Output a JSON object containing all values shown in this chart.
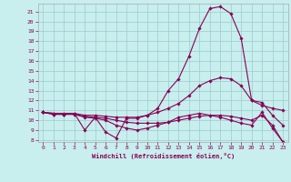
{
  "title": "",
  "xlabel": "Windchill (Refroidissement éolien,°C)",
  "bg_color": "#c8eeee",
  "line_color": "#880055",
  "grid_color": "#99cccc",
  "xlim": [
    -0.5,
    23.5
  ],
  "ylim": [
    7.8,
    21.8
  ],
  "yticks": [
    8,
    9,
    10,
    11,
    12,
    13,
    14,
    15,
    16,
    17,
    18,
    19,
    20,
    21
  ],
  "xticks": [
    0,
    1,
    2,
    3,
    4,
    5,
    6,
    7,
    8,
    9,
    10,
    11,
    12,
    13,
    14,
    15,
    16,
    17,
    18,
    19,
    20,
    21,
    22,
    23
  ],
  "series": [
    {
      "x": [
        0,
        1,
        2,
        3,
        4,
        5,
        6,
        7,
        8,
        9,
        10,
        11,
        12,
        13,
        14,
        15,
        16,
        17,
        18,
        19,
        20,
        21,
        22,
        23
      ],
      "y": [
        10.8,
        10.6,
        10.6,
        10.7,
        9.0,
        10.3,
        8.8,
        8.2,
        10.2,
        10.2,
        10.5,
        11.2,
        13.0,
        14.2,
        16.5,
        19.3,
        21.3,
        21.5,
        20.8,
        18.3,
        12.0,
        11.8,
        10.5,
        9.5
      ]
    },
    {
      "x": [
        0,
        1,
        2,
        3,
        4,
        5,
        6,
        7,
        8,
        9,
        10,
        11,
        12,
        13,
        14,
        15,
        16,
        17,
        18,
        19,
        20,
        21,
        22,
        23
      ],
      "y": [
        10.8,
        10.7,
        10.7,
        10.7,
        10.5,
        10.5,
        10.4,
        10.3,
        10.3,
        10.3,
        10.5,
        10.8,
        11.2,
        11.7,
        12.5,
        13.5,
        14.0,
        14.3,
        14.2,
        13.5,
        12.0,
        11.5,
        11.2,
        11.0
      ]
    },
    {
      "x": [
        0,
        1,
        2,
        3,
        4,
        5,
        6,
        7,
        8,
        9,
        10,
        11,
        12,
        13,
        14,
        15,
        16,
        17,
        18,
        19,
        20,
        21,
        22,
        23
      ],
      "y": [
        10.8,
        10.7,
        10.6,
        10.6,
        10.4,
        10.3,
        10.2,
        10.0,
        9.8,
        9.7,
        9.7,
        9.7,
        9.8,
        10.0,
        10.2,
        10.4,
        10.5,
        10.5,
        10.4,
        10.2,
        10.0,
        10.5,
        9.5,
        7.8
      ]
    },
    {
      "x": [
        0,
        1,
        2,
        3,
        4,
        5,
        6,
        7,
        8,
        9,
        10,
        11,
        12,
        13,
        14,
        15,
        16,
        17,
        18,
        19,
        20,
        21,
        22,
        23
      ],
      "y": [
        10.8,
        10.6,
        10.6,
        10.6,
        10.3,
        10.2,
        10.0,
        9.5,
        9.2,
        9.0,
        9.2,
        9.5,
        9.8,
        10.3,
        10.5,
        10.7,
        10.5,
        10.3,
        10.0,
        9.7,
        9.5,
        10.8,
        9.2,
        7.8
      ]
    }
  ]
}
